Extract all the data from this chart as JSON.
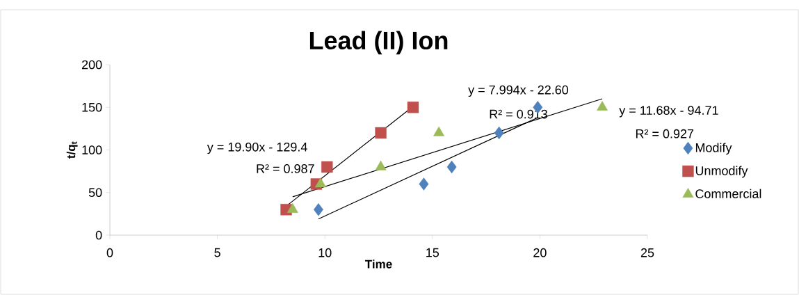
{
  "chart_data": {
    "type": "scatter",
    "title": "Lead (II) Ion",
    "xlabel": "Time",
    "ylabel": "t/q$_{t}$",
    "xlim": [
      0,
      25
    ],
    "xticks": [
      0,
      5,
      10,
      15,
      20,
      25
    ],
    "ylim": [
      0,
      200
    ],
    "yticks": [
      0,
      50,
      100,
      150,
      200
    ],
    "grid": false,
    "legend": "right",
    "series": [
      {
        "name": "Modify",
        "marker": "diamond",
        "color": "#4f81bd",
        "x": [
          9.7,
          14.6,
          15.9,
          18.1,
          19.9
        ],
        "values": [
          30,
          60,
          80,
          120,
          150
        ]
      },
      {
        "name": "Unmodify",
        "marker": "square",
        "color": "#c0504d",
        "x": [
          8.2,
          9.6,
          10.1,
          12.6,
          14.1
        ],
        "values": [
          30,
          60,
          80,
          120,
          150
        ]
      },
      {
        "name": "Commercial",
        "marker": "triangle",
        "color": "#9bbb59",
        "x": [
          8.5,
          9.8,
          12.6,
          15.3,
          22.9
        ],
        "values": [
          30,
          60,
          80,
          120,
          150
        ]
      },
      {
        "type": "line",
        "marker": "none",
        "color": "#000000",
        "x": [
          9.7,
          19.9
        ],
        "values": [
          19,
          138
        ]
      },
      {
        "type": "line",
        "marker": "none",
        "color": "#000000",
        "x": [
          8.2,
          14.1
        ],
        "values": [
          34,
          151
        ]
      },
      {
        "type": "line",
        "marker": "none",
        "color": "#000000",
        "x": [
          8.5,
          22.9
        ],
        "values": [
          45,
          160
        ]
      }
    ],
    "annotations": [
      "y = 19.90x - 129.4",
      "R² = 0.987",
      "y = 7.994x - 22.60",
      "R² = 0.913",
      "y = 11.68x - 94.71",
      "R² = 0.927"
    ]
  }
}
